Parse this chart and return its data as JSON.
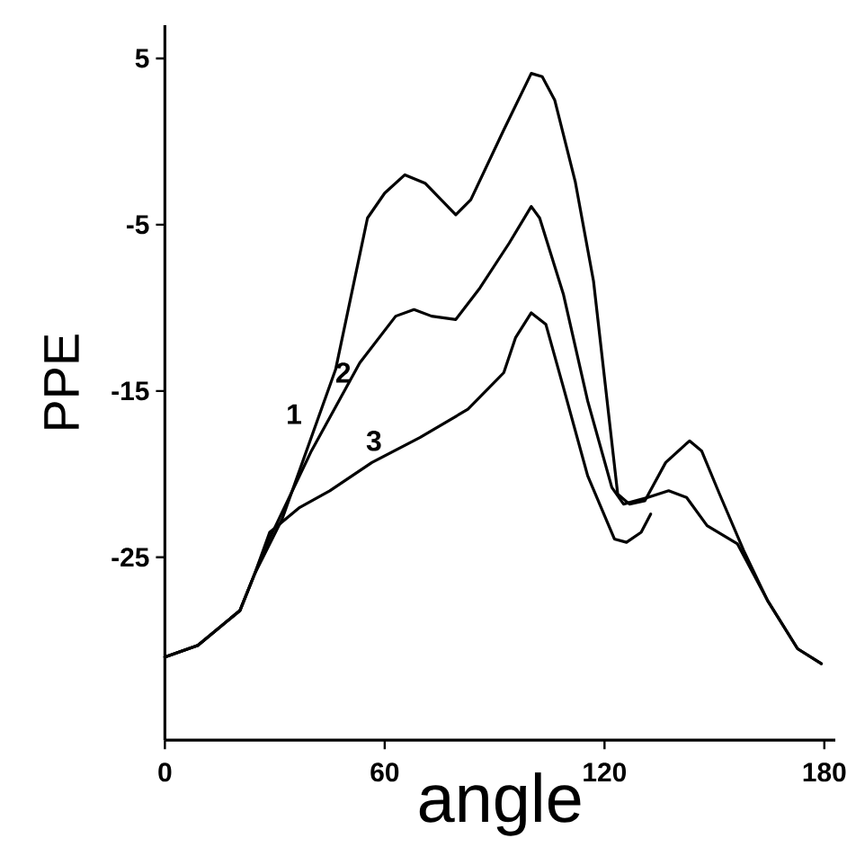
{
  "chart_data": {
    "type": "line",
    "xlabel": "angle",
    "ylabel": "PPE",
    "xlim": [
      0,
      183
    ],
    "ylim": [
      -36,
      7
    ],
    "xticks": [
      0,
      60,
      120,
      180
    ],
    "yticks": [
      5,
      -5,
      -15,
      -25
    ],
    "grid": false,
    "marker": "none",
    "line_style": "solid",
    "series": [
      {
        "name": "1",
        "color": "#000000",
        "x": [
          0,
          9,
          20.5,
          24.5,
          32,
          46.6,
          55.3,
          60,
          65.5,
          71,
          79.4,
          83.5,
          92.5,
          100,
          103,
          106.4,
          112,
          117,
          123.6,
          126.8,
          131,
          136.7,
          143.2,
          146.5,
          151.4,
          158,
          164.5,
          172.7,
          179.2
        ],
        "values": [
          -31,
          -30.3,
          -28.2,
          -26,
          -22.7,
          -13.7,
          -4.6,
          -3.1,
          -2,
          -2.5,
          -4.4,
          -3.5,
          0.7,
          4.1,
          3.9,
          2.5,
          -2.4,
          -8.4,
          -21.2,
          -21.8,
          -21.6,
          -19.3,
          -18,
          -18.6,
          -21.2,
          -24.6,
          -27.6,
          -30.5,
          -31.4
        ]
      },
      {
        "name": "2",
        "color": "#000000",
        "x": [
          0,
          9,
          20.5,
          24.5,
          27,
          40,
          53.2,
          63,
          68,
          72.8,
          79.4,
          86,
          94,
          100,
          102.3,
          108.8,
          115.4,
          122,
          125.2,
          131.8,
          137.5,
          142.4,
          148,
          156.3,
          164.5,
          172.7,
          179.2
        ],
        "values": [
          -31,
          -30.3,
          -28.2,
          -26,
          -24.6,
          -18.6,
          -13.3,
          -10.5,
          -10.1,
          -10.5,
          -10.7,
          -8.8,
          -6.1,
          -3.9,
          -4.6,
          -9.2,
          -15.6,
          -20.8,
          -21.8,
          -21.4,
          -21,
          -21.4,
          -23.1,
          -24.2,
          -27.6,
          -30.5,
          -31.4
        ]
      },
      {
        "name": "3",
        "color": "#000000",
        "x": [
          0,
          9,
          20.5,
          24.5,
          28.6,
          36.8,
          45,
          56.5,
          69.6,
          82.7,
          92.5,
          95.7,
          100,
          104,
          108.8,
          115.4,
          122.7,
          126,
          130,
          132.6
        ],
        "values": [
          -31,
          -30.3,
          -28.2,
          -26,
          -23.5,
          -22,
          -21,
          -19.3,
          -17.8,
          -16.1,
          -13.9,
          -11.8,
          -10.3,
          -11,
          -14.8,
          -20.1,
          -23.9,
          -24.1,
          -23.5,
          -22.4
        ]
      }
    ]
  }
}
